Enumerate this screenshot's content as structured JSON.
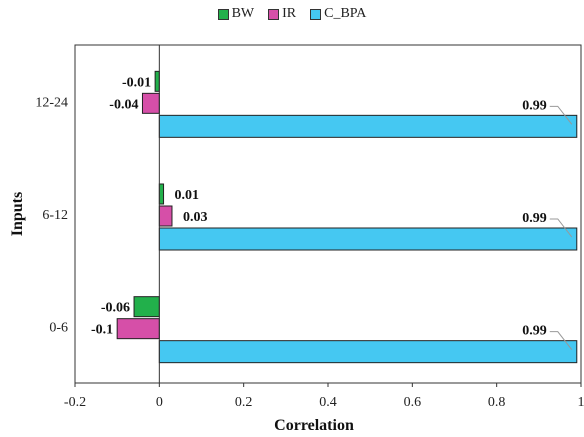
{
  "chart_data": {
    "type": "bar",
    "orientation": "horizontal",
    "categories": [
      "0-6",
      "6-12",
      "12-24"
    ],
    "series": [
      {
        "name": "BW",
        "color": "#22b04b",
        "values": [
          -0.06,
          0.01,
          -0.01
        ],
        "labels": [
          "-0.06",
          "0.01",
          "-0.01"
        ]
      },
      {
        "name": "IR",
        "color": "#d64fa8",
        "values": [
          -0.1,
          0.03,
          -0.04
        ],
        "labels": [
          "-0.1",
          "0.03",
          "-0.04"
        ]
      },
      {
        "name": "C_BPA",
        "color": "#45c8f2",
        "values": [
          0.99,
          0.99,
          0.99
        ],
        "labels": [
          "0.99",
          "0.99",
          "0.99"
        ]
      }
    ],
    "xlabel": "Correlation",
    "ylabel": "Inputs",
    "xlim": [
      -0.2,
      1
    ],
    "xticks": [
      "-0.2",
      "0",
      "0.2",
      "0.4",
      "0.6",
      "0.8",
      "1"
    ],
    "xtick_values": [
      -0.2,
      0,
      0.2,
      0.4,
      0.6,
      0.8,
      1
    ],
    "legend_position": "top-center",
    "grid": false
  }
}
